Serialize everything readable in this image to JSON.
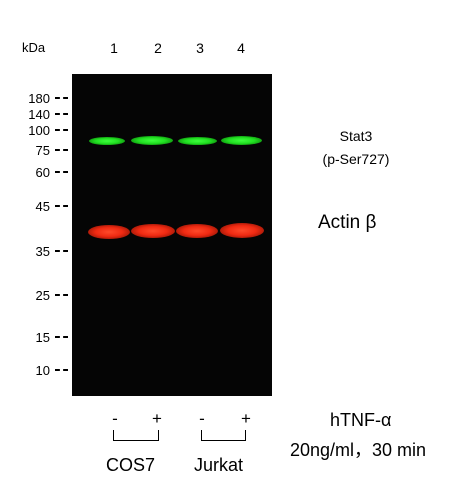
{
  "axis": {
    "unit_label": "kDa",
    "markers": [
      "180",
      "140",
      "100",
      "75",
      "60",
      "45",
      "35",
      "25",
      "15",
      "10"
    ]
  },
  "lanes": [
    "1",
    "2",
    "3",
    "4"
  ],
  "targets": {
    "stat3_name": "Stat3",
    "stat3_site": "(p-Ser727)",
    "actin": "Actin β"
  },
  "treatment": {
    "signs": [
      "-",
      "+",
      "-",
      "+"
    ],
    "agent": "hTNF-α",
    "dose": "20ng/ml，30 min"
  },
  "groups": [
    "COS7",
    "Jurkat"
  ],
  "colors": {
    "stat3_band": "#22e022",
    "actin_band": "#f02a12",
    "blot_background": "#050505"
  }
}
